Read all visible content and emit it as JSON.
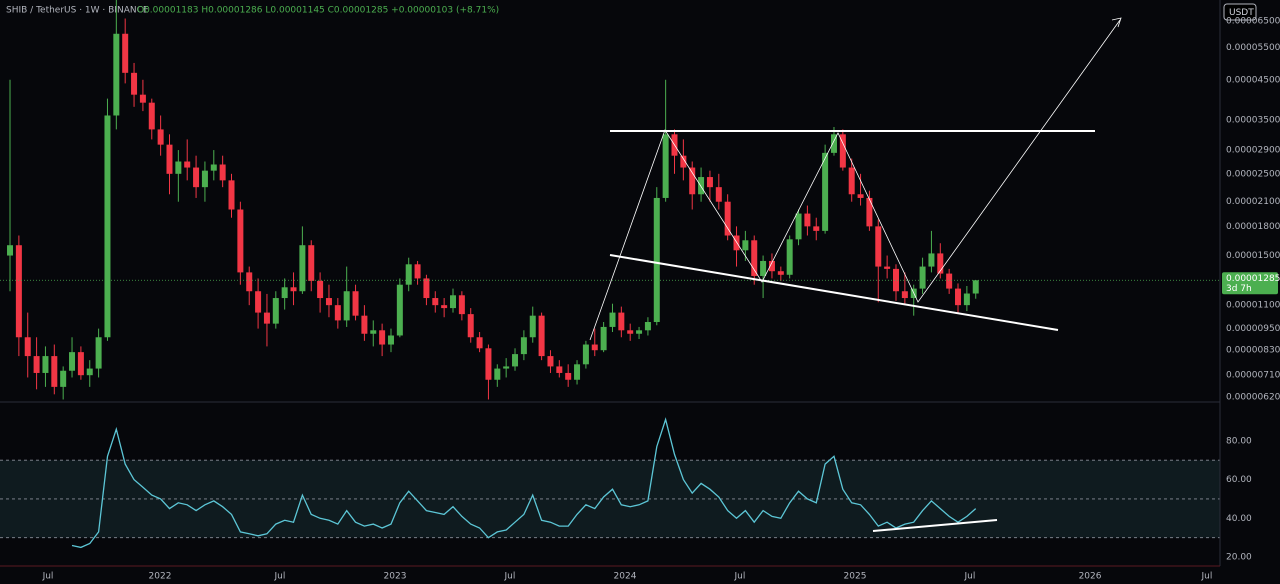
{
  "header": {
    "symbol": "SHIB / TetherUS · 1W · BINANCE",
    "ohlc": "O0.00001183 H0.00001286 L0.00001145 C0.00001285 +0.00000103 (+8.71%)"
  },
  "currency_button": "USDT",
  "chart_data": [
    {
      "type": "candlestick",
      "log_scale": true,
      "up_color": "#4caf50",
      "down_color": "#f23645",
      "last_price_label": "0.00001285",
      "countdown": "3d 7h",
      "categories": [
        null,
        null,
        null,
        null,
        null,
        null,
        null,
        null,
        null,
        null,
        null,
        null,
        null,
        null,
        null,
        null,
        null,
        null,
        null,
        null,
        null,
        null,
        null,
        null,
        null,
        null,
        null,
        null,
        null,
        null,
        null,
        null,
        null,
        null,
        null,
        null,
        null,
        null,
        null,
        null,
        null,
        null,
        null,
        null,
        null,
        null,
        null,
        null,
        null,
        null,
        null,
        null,
        null,
        null,
        null,
        null,
        null,
        null,
        null,
        null,
        null,
        null,
        null,
        null,
        null,
        null,
        null,
        null,
        null,
        null,
        null,
        null,
        null,
        null,
        null,
        null,
        null,
        null,
        null,
        null,
        null,
        null,
        null,
        null,
        null,
        null,
        null,
        null,
        null,
        null,
        null,
        null,
        null,
        null,
        null,
        null,
        null,
        null,
        null,
        null,
        null,
        null,
        null,
        null,
        null,
        null,
        null,
        null,
        null,
        null
      ],
      "open": [
        1.5e-05,
        1.6e-05,
        9e-06,
        8e-06,
        7.2e-06,
        8e-06,
        6.6e-06,
        7.3e-06,
        8.2e-06,
        7.1e-06,
        7.4e-06,
        9e-06,
        3.6e-05,
        6e-05,
        4.7e-05,
        4.1e-05,
        3.9e-05,
        3.3e-05,
        3e-05,
        2.5e-05,
        2.7e-05,
        2.6e-05,
        2.3e-05,
        2.55e-05,
        2.65e-05,
        2.4e-05,
        2e-05,
        1.35e-05,
        1.2e-05,
        1.05e-05,
        9.8e-06,
        1.15e-05,
        1.23e-05,
        1.2e-05,
        1.6e-05,
        1.28e-05,
        1.15e-05,
        1.1e-05,
        1e-05,
        1.2e-05,
        1.03e-05,
        9.2e-06,
        9.4e-06,
        8.6e-06,
        9.1e-06,
        1.25e-05,
        1.42e-05,
        1.3e-05,
        1.15e-05,
        1.1e-05,
        1.08e-05,
        1.17e-05,
        1.04e-05,
        9e-06,
        8.4e-06,
        6.9e-06,
        7.4e-06,
        7.5e-06,
        8.1e-06,
        9e-06,
        1.03e-05,
        8e-06,
        7.5e-06,
        7.2e-06,
        6.9e-06,
        7.6e-06,
        8.6e-06,
        8.3e-06,
        9.6e-06,
        1.05e-05,
        9.4e-06,
        9.2e-06,
        9.4e-06,
        9.9e-06,
        2.15e-05,
        3.2e-05,
        2.8e-05,
        2.6e-05,
        2.2e-05,
        2.45e-05,
        2.3e-05,
        2.1e-05,
        1.7e-05,
        1.55e-05,
        1.65e-05,
        1.32e-05,
        1.45e-05,
        1.36e-05,
        1.33e-05,
        1.66e-05,
        1.95e-05,
        1.8e-05,
        1.75e-05,
        2.85e-05,
        3.2e-05,
        2.6e-05,
        2.2e-05,
        2.15e-05,
        1.8e-05,
        1.4e-05,
        1.38e-05,
        1.2e-05,
        1.15e-05,
        1.22e-05,
        1.4e-05,
        1.52e-05,
        1.34e-05,
        1.22e-05,
        1.1e-05,
        1.183e-05
      ],
      "high": [
        4.5e-05,
        1.7e-05,
        1.05e-05,
        9e-06,
        8.5e-06,
        8.6e-06,
        7.5e-06,
        9e-06,
        8.5e-06,
        7.8e-06,
        9.5e-06,
        4e-05,
        7.5e-05,
        6.6e-05,
        5e-05,
        4.5e-05,
        4e-05,
        3.6e-05,
        3.2e-05,
        2.9e-05,
        3.1e-05,
        2.8e-05,
        2.7e-05,
        2.9e-05,
        2.8e-05,
        2.5e-05,
        2.1e-05,
        1.4e-05,
        1.3e-05,
        1.18e-05,
        1.2e-05,
        1.3e-05,
        1.35e-05,
        1.8e-05,
        1.65e-05,
        1.35e-05,
        1.25e-05,
        1.15e-05,
        1.4e-05,
        1.25e-05,
        1.1e-05,
        1e-05,
        9.8e-06,
        9.5e-06,
        1.3e-05,
        1.48e-05,
        1.45e-05,
        1.33e-05,
        1.2e-05,
        1.15e-05,
        1.22e-05,
        1.2e-05,
        1.08e-05,
        9.3e-06,
        8.6e-06,
        7.6e-06,
        7.9e-06,
        8.4e-06,
        9.4e-06,
        1.09e-05,
        1.05e-05,
        8.3e-06,
        7.8e-06,
        7.6e-06,
        7.8e-06,
        8.8e-06,
        9.5e-06,
        9.9e-06,
        1.11e-05,
        1.09e-05,
        9.8e-06,
        9.6e-06,
        1.02e-05,
        2.3e-05,
        4.5e-05,
        3.3e-05,
        3.1e-05,
        2.7e-05,
        2.6e-05,
        2.55e-05,
        2.5e-05,
        2.2e-05,
        1.8e-05,
        1.75e-05,
        1.7e-05,
        1.5e-05,
        1.52e-05,
        1.4e-05,
        1.7e-05,
        2e-05,
        2.05e-05,
        1.9e-05,
        3e-05,
        3.35e-05,
        3.3e-05,
        2.75e-05,
        2.5e-05,
        2.25e-05,
        1.88e-05,
        1.5e-05,
        1.42e-05,
        1.35e-05,
        1.25e-05,
        1.48e-05,
        1.75e-05,
        1.62e-05,
        1.38e-05,
        1.26e-05,
        1.24e-05,
        1.286e-05
      ],
      "low": [
        1.2e-05,
        8e-06,
        7e-06,
        6.5e-06,
        6.6e-06,
        6.3e-06,
        6.1e-06,
        7e-06,
        6.9e-06,
        6.6e-06,
        7e-06,
        8.8e-06,
        3.3e-05,
        4.4e-05,
        3.8e-05,
        3.7e-05,
        3.1e-05,
        2.8e-05,
        2.2e-05,
        2.1e-05,
        2.4e-05,
        2.15e-05,
        2.1e-05,
        2.4e-05,
        2.3e-05,
        1.9e-05,
        1.25e-05,
        1.1e-05,
        9.5e-06,
        8.5e-06,
        9.5e-06,
        1.07e-05,
        1.1e-05,
        1.18e-05,
        1.2e-05,
        1.05e-05,
        1.02e-05,
        9.5e-06,
        9.6e-06,
        1e-05,
        8.8e-06,
        8.5e-06,
        8e-06,
        8.2e-06,
        9e-06,
        1.2e-05,
        1.25e-05,
        1.1e-05,
        1.05e-05,
        1.02e-05,
        1.05e-05,
        1e-05,
        8.7e-06,
        8.2e-06,
        6.1e-06,
        6.6e-06,
        7e-06,
        7.3e-06,
        7.8e-06,
        8.7e-06,
        7.8e-06,
        7.2e-06,
        7e-06,
        6.6e-06,
        6.7e-06,
        7.4e-06,
        8e-06,
        8.2e-06,
        9.3e-06,
        9e-06,
        8.8e-06,
        8.9e-06,
        9.1e-06,
        9.7e-06,
        2.1e-05,
        2.5e-05,
        2.4e-05,
        2e-05,
        2.1e-05,
        2.1e-05,
        2e-05,
        1.65e-05,
        1.4e-05,
        1.45e-05,
        1.25e-05,
        1.15e-05,
        1.3e-05,
        1.28e-05,
        1.3e-05,
        1.6e-05,
        1.7e-05,
        1.65e-05,
        1.72e-05,
        2.8e-05,
        2.55e-05,
        2.1e-05,
        2.05e-05,
        1.75e-05,
        1.12e-05,
        1.3e-05,
        1.13e-05,
        1.1e-05,
        1.03e-05,
        1.18e-05,
        1.35e-05,
        1.3e-05,
        1.18e-05,
        1.05e-05,
        1.06e-05,
        1.145e-05
      ],
      "close": [
        1.6e-05,
        9e-06,
        8e-06,
        7.2e-06,
        8e-06,
        6.6e-06,
        7.3e-06,
        8.2e-06,
        7.1e-06,
        7.4e-06,
        9e-06,
        3.6e-05,
        6e-05,
        4.7e-05,
        4.1e-05,
        3.9e-05,
        3.3e-05,
        3e-05,
        2.5e-05,
        2.7e-05,
        2.6e-05,
        2.3e-05,
        2.55e-05,
        2.65e-05,
        2.4e-05,
        2e-05,
        1.35e-05,
        1.2e-05,
        1.05e-05,
        9.8e-06,
        1.15e-05,
        1.23e-05,
        1.2e-05,
        1.6e-05,
        1.28e-05,
        1.15e-05,
        1.1e-05,
        1e-05,
        1.2e-05,
        1.03e-05,
        9.2e-06,
        9.4e-06,
        8.6e-06,
        9.1e-06,
        1.25e-05,
        1.42e-05,
        1.3e-05,
        1.15e-05,
        1.1e-05,
        1.08e-05,
        1.17e-05,
        1.04e-05,
        9e-06,
        8.4e-06,
        6.9e-06,
        7.4e-06,
        7.5e-06,
        8.1e-06,
        9e-06,
        1.03e-05,
        8e-06,
        7.5e-06,
        7.2e-06,
        6.9e-06,
        7.6e-06,
        8.6e-06,
        8.3e-06,
        9.6e-06,
        1.05e-05,
        9.4e-06,
        9.2e-06,
        9.4e-06,
        9.9e-06,
        2.15e-05,
        3.2e-05,
        2.8e-05,
        2.6e-05,
        2.2e-05,
        2.45e-05,
        2.3e-05,
        2.1e-05,
        1.7e-05,
        1.55e-05,
        1.65e-05,
        1.32e-05,
        1.45e-05,
        1.36e-05,
        1.33e-05,
        1.66e-05,
        1.95e-05,
        1.8e-05,
        1.75e-05,
        2.85e-05,
        3.2e-05,
        2.6e-05,
        2.2e-05,
        2.15e-05,
        1.8e-05,
        1.4e-05,
        1.38e-05,
        1.2e-05,
        1.15e-05,
        1.22e-05,
        1.4e-05,
        1.52e-05,
        1.34e-05,
        1.22e-05,
        1.1e-05,
        1.183e-05,
        1.285e-05
      ],
      "xlim": [
        -1.13,
        136.57
      ],
      "xticks": [
        {
          "value": 4.29,
          "label": "Jul"
        },
        {
          "value": 16.93,
          "label": "2022"
        },
        {
          "value": 30.47,
          "label": "Jul"
        },
        {
          "value": 43.45,
          "label": "2023"
        },
        {
          "value": 56.43,
          "label": "Jul"
        },
        {
          "value": 69.41,
          "label": "2024"
        },
        {
          "value": 82.39,
          "label": "Jul"
        },
        {
          "value": 95.37,
          "label": "2025"
        },
        {
          "value": 108.35,
          "label": "Jul"
        },
        {
          "value": 121.9,
          "label": "2026"
        },
        {
          "value": 135.1,
          "label": "Jul"
        }
      ],
      "ylim": [
        6.08e-06,
        7.41e-05
      ],
      "yticks": [
        {
          "value": 6.2e-06,
          "label": "0.00000620"
        },
        {
          "value": 7.1e-06,
          "label": "0.00000710"
        },
        {
          "value": 8.3e-06,
          "label": "0.00000830"
        },
        {
          "value": 9.5e-06,
          "label": "0.00000950"
        },
        {
          "value": 1.1e-05,
          "label": "0.00001100"
        },
        {
          "value": 1.5e-05,
          "label": "0.00001500"
        },
        {
          "value": 1.8e-05,
          "label": "0.00001800"
        },
        {
          "value": 2.1e-05,
          "label": "0.00002100"
        },
        {
          "value": 2.5e-05,
          "label": "0.00002500"
        },
        {
          "value": 2.9e-05,
          "label": "0.00002900"
        },
        {
          "value": 3.5e-05,
          "label": "0.00003500"
        },
        {
          "value": 4.5e-05,
          "label": "0.00004500"
        },
        {
          "value": 5.5e-05,
          "label": "0.00005500"
        },
        {
          "value": 6.5e-05,
          "label": "0.00006500"
        }
      ]
    },
    {
      "type": "line",
      "series": [
        {
          "color": "#5cc6d6",
          "values": [
            null,
            null,
            null,
            null,
            null,
            null,
            null,
            26,
            25,
            27,
            33,
            72,
            86,
            68,
            60,
            56,
            52,
            50,
            45,
            48,
            47,
            44,
            47,
            49,
            46,
            42,
            33,
            32,
            31,
            32,
            37,
            39,
            38,
            52,
            42,
            40,
            39,
            37,
            44,
            38,
            36,
            37,
            35,
            37,
            48,
            54,
            49,
            44,
            43,
            42,
            46,
            41,
            37,
            35,
            30,
            33,
            34,
            38,
            42,
            52,
            39,
            38,
            36,
            36,
            42,
            47,
            45,
            51,
            55,
            47,
            46,
            47,
            49,
            77,
            91,
            73,
            60,
            53,
            58,
            55,
            51,
            44,
            40,
            44,
            38,
            44,
            41,
            40,
            48,
            54,
            50,
            48,
            68,
            72,
            55,
            48,
            47,
            42,
            36,
            38,
            35,
            37,
            38,
            44,
            49,
            45,
            41,
            38,
            41,
            45
          ]
        }
      ],
      "levels": [
        30,
        50,
        70
      ],
      "ylim": [
        15.4,
        99.5
      ],
      "yticks": [
        {
          "value": 20,
          "label": "20.00"
        },
        {
          "value": 40,
          "label": "40.00"
        },
        {
          "value": 60,
          "label": "60.00"
        },
        {
          "value": 80,
          "label": "80.00"
        }
      ]
    }
  ]
}
